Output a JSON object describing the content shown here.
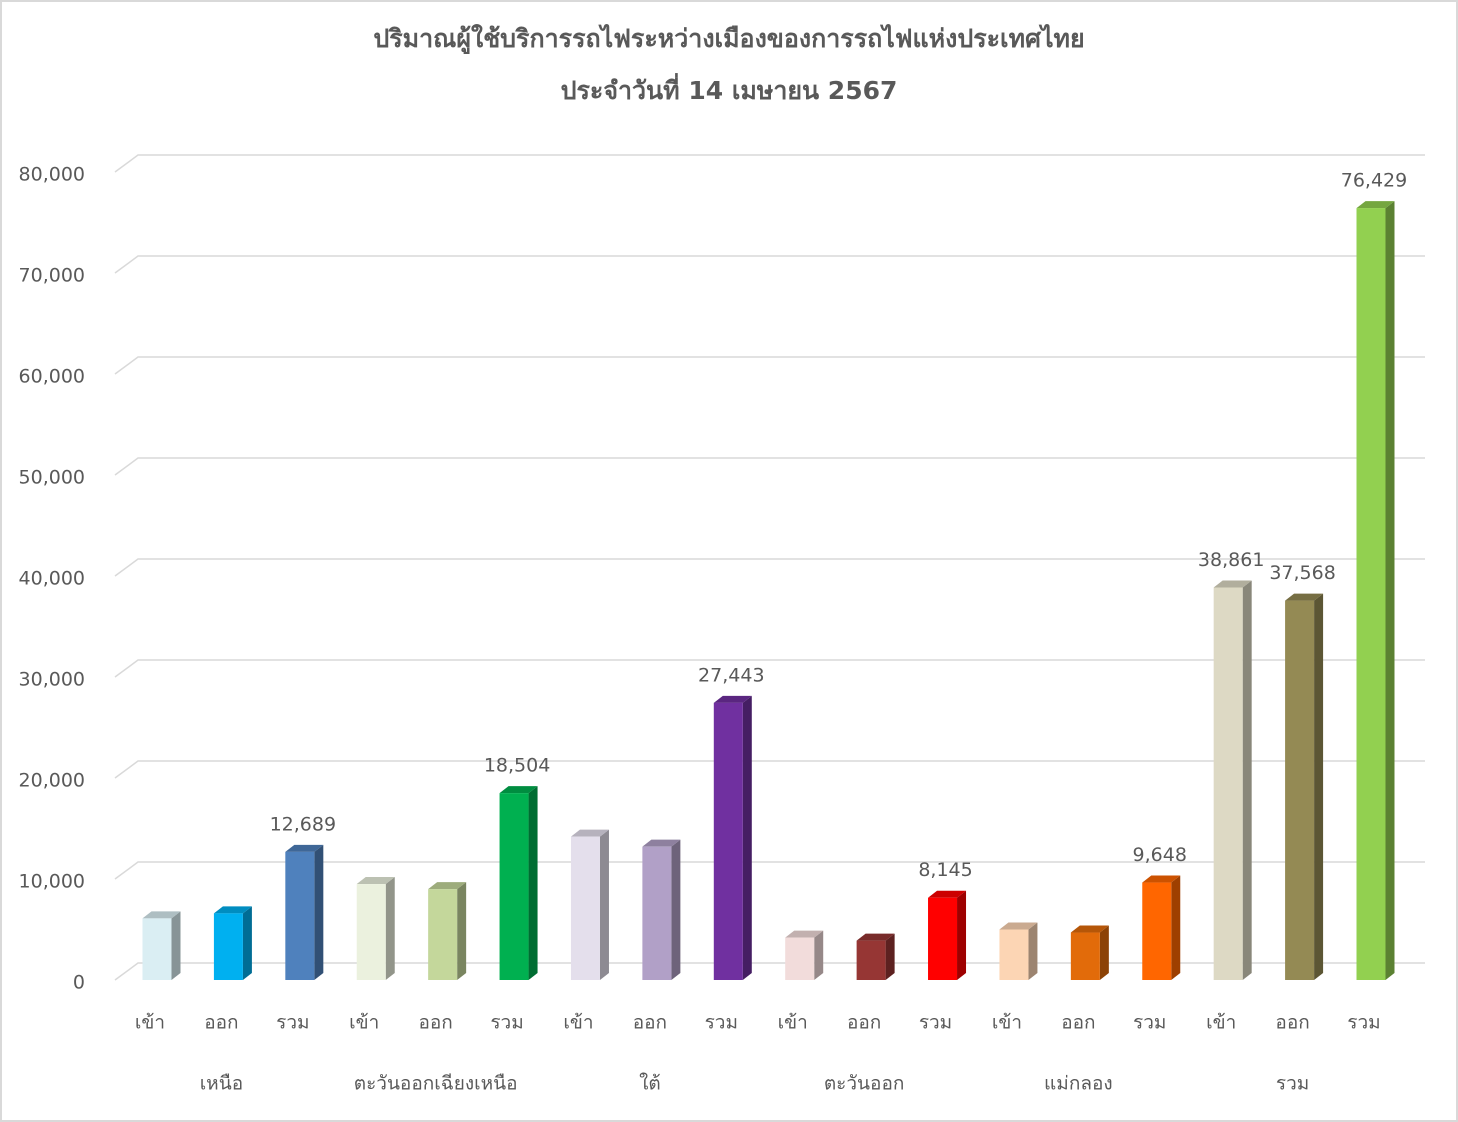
{
  "chart_data": {
    "type": "bar3d",
    "title": "ปริมาณผู้ใช้บริการรถไฟระหว่างเมืองของการรถไฟแห่งประเทศไทย",
    "subtitle": "ประจำวันที่ 14 เมษายน 2567",
    "categories": [
      "เข้า",
      "ออก",
      "รวม",
      "เข้า",
      "ออก",
      "รวม",
      "เข้า",
      "ออก",
      "รวม",
      "เข้า",
      "ออก",
      "รวม",
      "เข้า",
      "ออก",
      "รวม",
      "เข้า",
      "ออก",
      "รวม"
    ],
    "groups": [
      "เหนือ",
      "ตะวันออกเฉียงเหนือ",
      "ใต้",
      "ตะวันออก",
      "แม่กลอง",
      "รวม"
    ],
    "values": [
      6100,
      6600,
      12689,
      9500,
      9000,
      18504,
      14200,
      13200,
      27443,
      4200,
      3900,
      8145,
      5000,
      4700,
      9648,
      38861,
      37568,
      76429
    ],
    "value_labels": [
      null,
      null,
      "12,689",
      null,
      null,
      "18,504",
      null,
      null,
      "27,443",
      null,
      null,
      "8,145",
      null,
      null,
      "9,648",
      "38,861",
      "37,568",
      "76,429"
    ],
    "colors": [
      "#daeef3",
      "#00b0f0",
      "#4f81bd",
      "#ebf1de",
      "#c4d79b",
      "#00b050",
      "#e4dfec",
      "#b1a0c7",
      "#7030a0",
      "#f2dcdb",
      "#963634",
      "#ff0000",
      "#fcd5b4",
      "#e26b0a",
      "#ff6600",
      "#ddd9c4",
      "#948a54",
      "#92d050"
    ],
    "ylim": [
      0,
      80000
    ],
    "yticks": [
      0,
      {
        "value": 10000,
        "label": "10,000"
      },
      {
        "value": 20000,
        "label": "20,000"
      },
      {
        "value": 30000,
        "label": "30,000"
      },
      {
        "value": 40000,
        "label": "40,000"
      },
      {
        "value": 50000,
        "label": "50,000"
      },
      {
        "value": 60000,
        "label": "60,000"
      },
      {
        "value": 70000,
        "label": "70,000"
      },
      {
        "value": 80000,
        "label": "80,000"
      }
    ],
    "grid": true
  }
}
